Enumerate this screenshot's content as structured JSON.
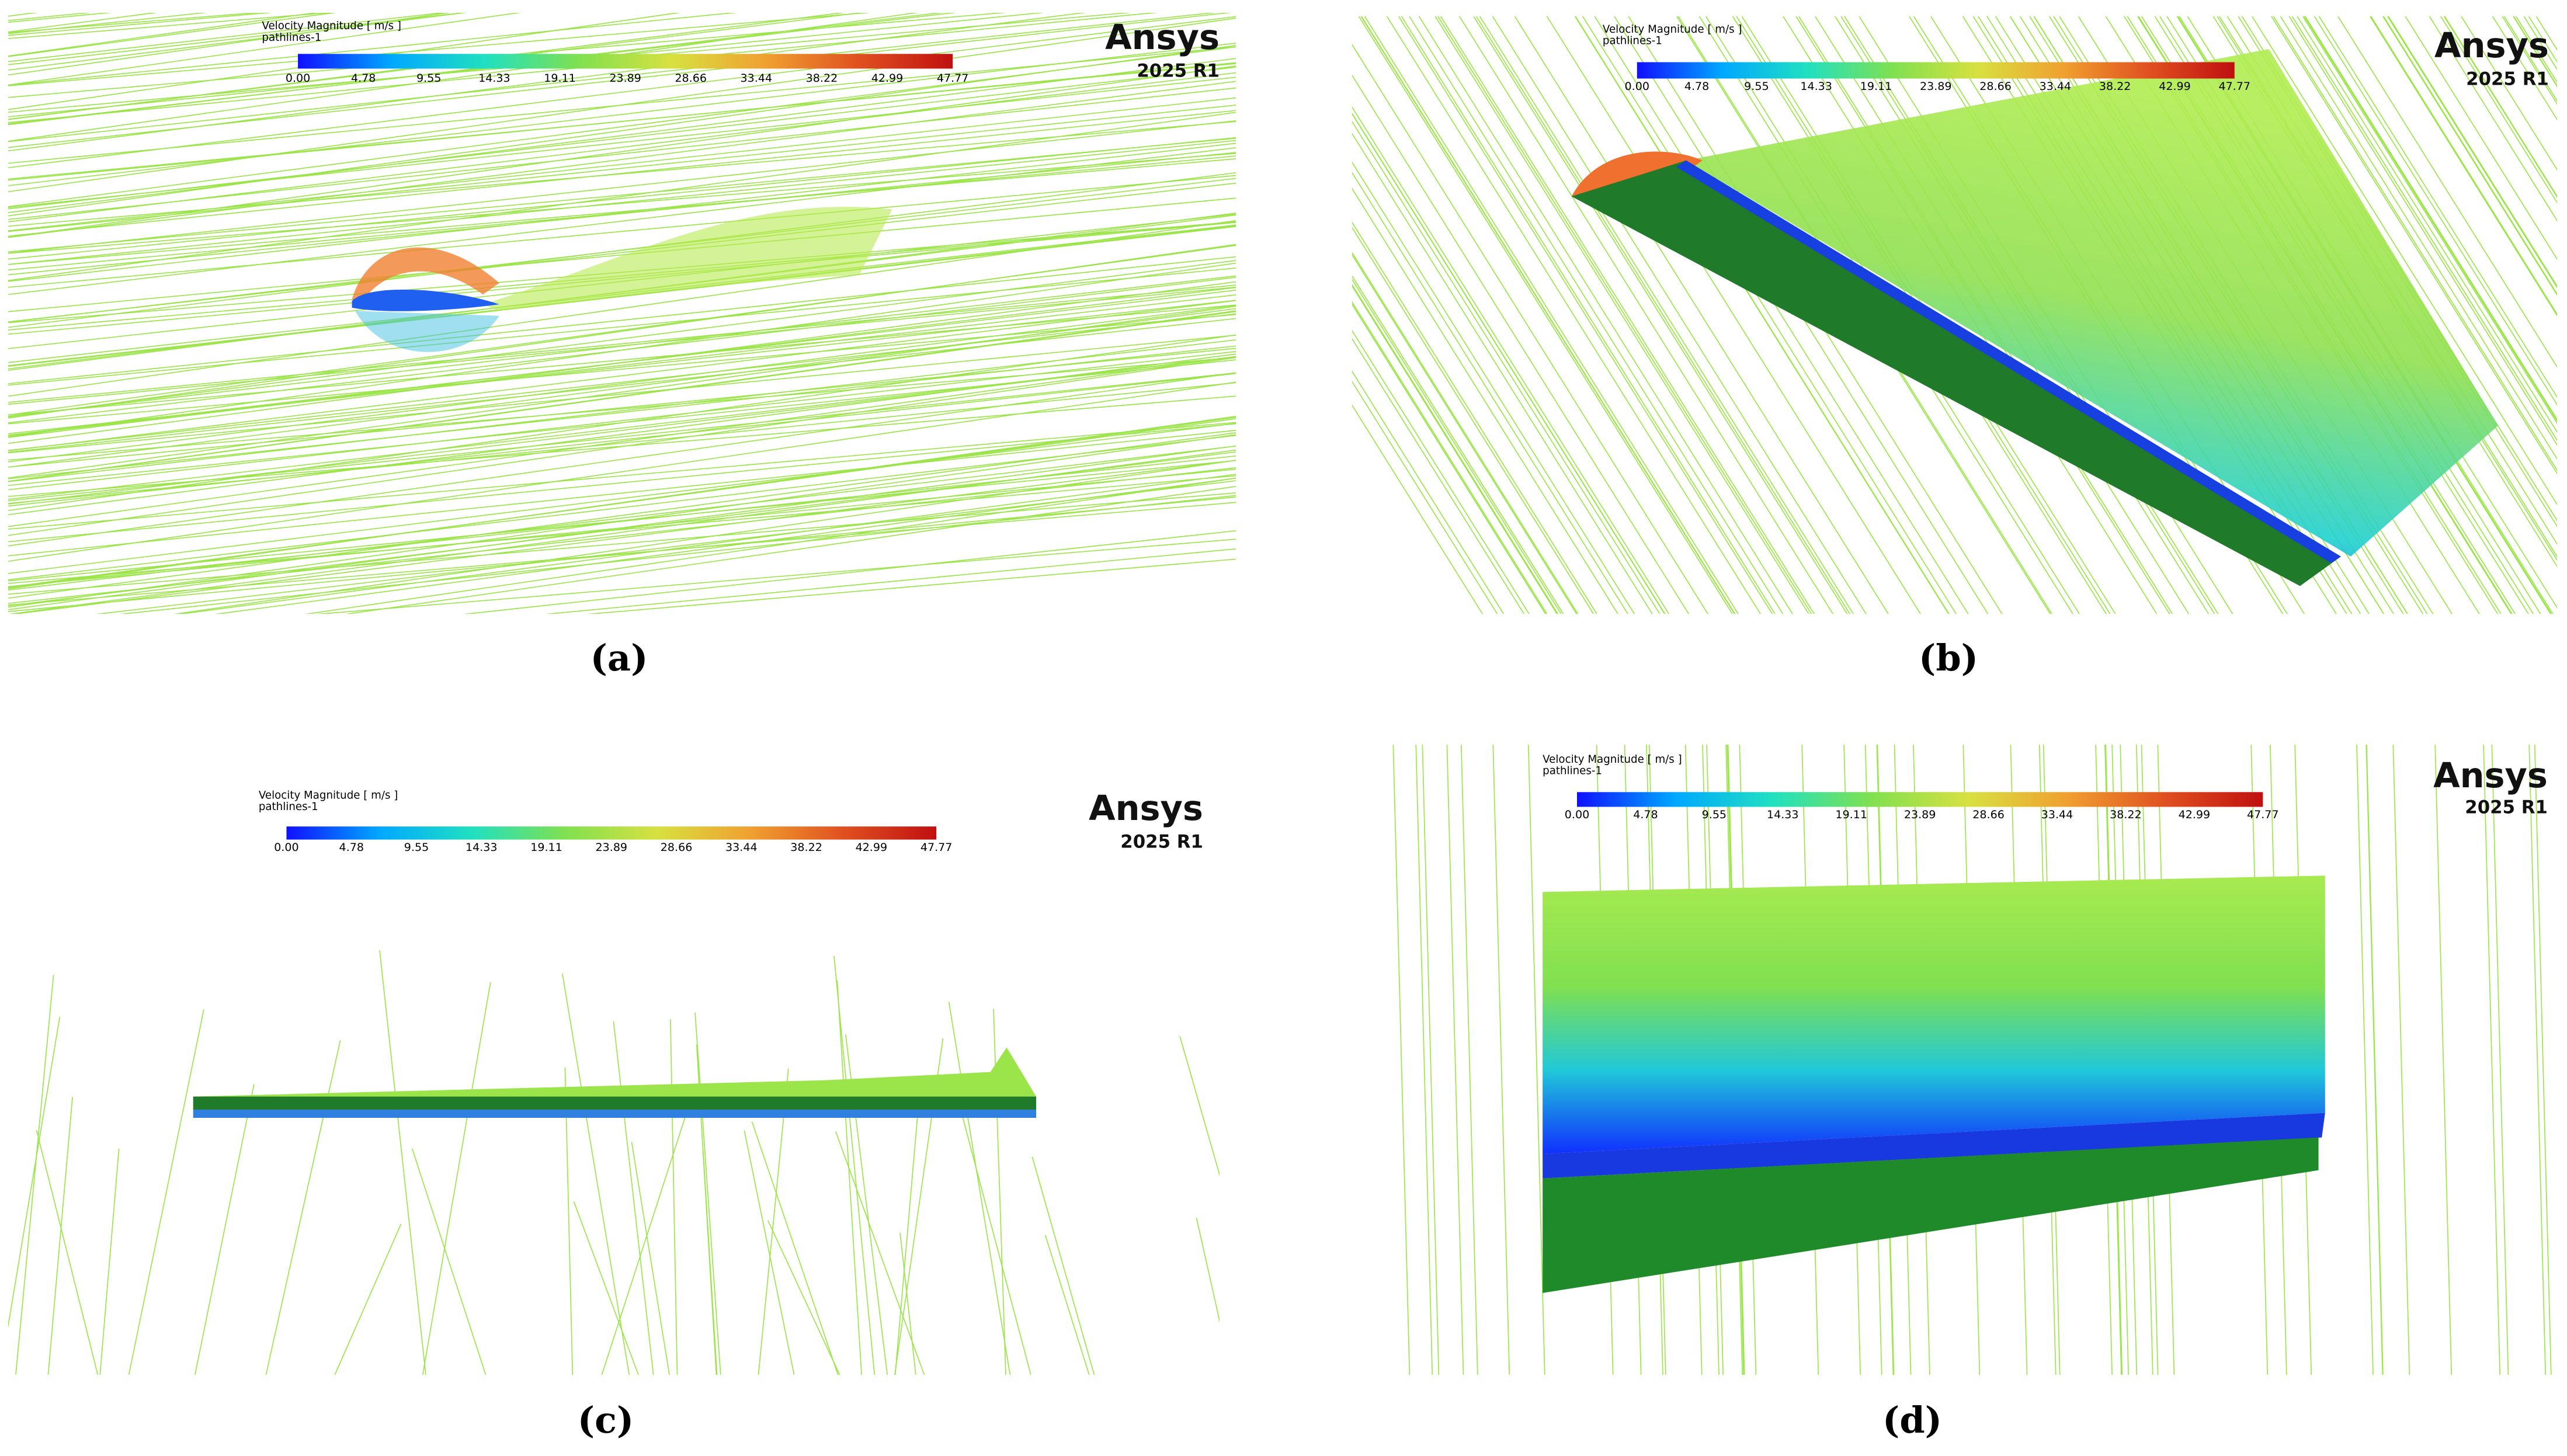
{
  "panels": [
    {
      "caption": "(a)",
      "legend": {
        "title": "Velocity Magnitude [ m/s ]",
        "subtitle": "pathlines-1",
        "ticks": [
          "0.00",
          "4.78",
          "9.55",
          "14.33",
          "19.11",
          "23.89",
          "28.66",
          "33.44",
          "38.22",
          "42.99",
          "47.77"
        ]
      },
      "brand": {
        "name": "Ansys",
        "version": "2025 R1"
      }
    },
    {
      "caption": "(b)",
      "legend": {
        "title": "Velocity Magnitude [ m/s ]",
        "subtitle": "pathlines-1",
        "ticks": [
          "0.00",
          "4.78",
          "9.55",
          "14.33",
          "19.11",
          "23.89",
          "28.66",
          "33.44",
          "38.22",
          "42.99",
          "47.77"
        ]
      },
      "brand": {
        "name": "Ansys",
        "version": "2025 R1"
      }
    },
    {
      "caption": "(c)",
      "legend": {
        "title": "Velocity Magnitude [ m/s ]",
        "subtitle": "pathlines-1",
        "ticks": [
          "0.00",
          "4.78",
          "9.55",
          "14.33",
          "19.11",
          "23.89",
          "28.66",
          "33.44",
          "38.22",
          "42.99",
          "47.77"
        ]
      },
      "brand": {
        "name": "Ansys",
        "version": "2025 R1"
      }
    },
    {
      "caption": "(d)",
      "legend": {
        "title": "Velocity Magnitude [ m/s ]",
        "subtitle": "pathlines-1",
        "ticks": [
          "0.00",
          "4.78",
          "9.55",
          "14.33",
          "19.11",
          "23.89",
          "28.66",
          "33.44",
          "38.22",
          "42.99",
          "47.77"
        ]
      },
      "brand": {
        "name": "Ansys",
        "version": "2025 R1"
      }
    }
  ]
}
